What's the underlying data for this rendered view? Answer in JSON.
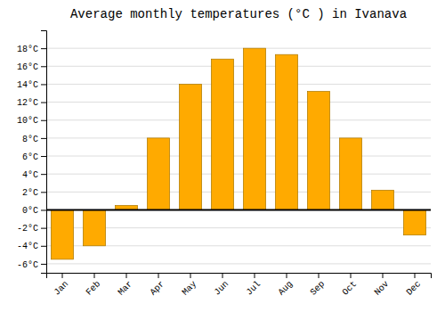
{
  "chart_data": {
    "type": "bar",
    "title": "Average monthly temperatures (°C ) in Ivanava",
    "categories": [
      "Jan",
      "Feb",
      "Mar",
      "Apr",
      "May",
      "Jun",
      "Jul",
      "Aug",
      "Sep",
      "Oct",
      "Nov",
      "Dec"
    ],
    "values": [
      -5.5,
      -4.0,
      0.5,
      8.0,
      14.0,
      16.8,
      18.0,
      17.3,
      13.2,
      8.0,
      2.2,
      -2.8
    ],
    "color": "#FFAA00",
    "ylim": [
      -7,
      20
    ],
    "yticks": [
      {
        "value": -6,
        "label": "-6°C"
      },
      {
        "value": -4,
        "label": "-4°C"
      },
      {
        "value": -2,
        "label": "-2°C"
      },
      {
        "value": 0,
        "label": "0°C"
      },
      {
        "value": 2,
        "label": "2°C"
      },
      {
        "value": 4,
        "label": "4°C"
      },
      {
        "value": 6,
        "label": "6°C"
      },
      {
        "value": 8,
        "label": "8°C"
      },
      {
        "value": 10,
        "label": "10°C"
      },
      {
        "value": 12,
        "label": "12°C"
      },
      {
        "value": 14,
        "label": "14°C"
      },
      {
        "value": 16,
        "label": "16°C"
      },
      {
        "value": 18,
        "label": "18°C"
      }
    ],
    "grid": true
  }
}
